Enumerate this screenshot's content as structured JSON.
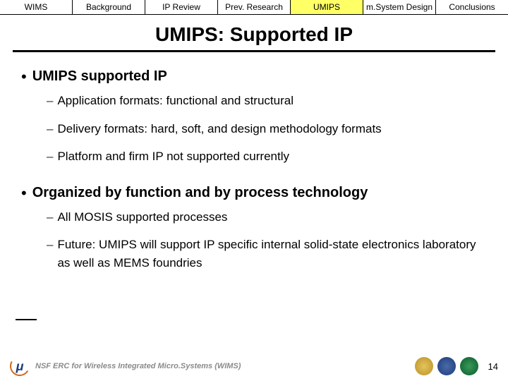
{
  "nav": {
    "tabs": [
      {
        "label": "WIMS",
        "active": false
      },
      {
        "label": "Background",
        "active": false
      },
      {
        "label": "IP Review",
        "active": false
      },
      {
        "label": "Prev. Research",
        "active": false
      },
      {
        "label": "UMIPS",
        "active": true
      },
      {
        "label": "m.System Design",
        "active": false
      },
      {
        "label": "Conclusions",
        "active": false
      }
    ]
  },
  "title": "UMIPS: Supported IP",
  "bullets": [
    {
      "text": "UMIPS supported IP",
      "sub": [
        "Application formats: functional and structural",
        "Delivery formats: hard, soft, and design methodology formats",
        "Platform and firm IP not supported currently"
      ]
    },
    {
      "text": "Organized by function and by process technology",
      "sub": [
        "All MOSIS supported processes",
        "Future: UMIPS will support IP specific internal solid-state electronics laboratory as well as MEMS foundries"
      ]
    }
  ],
  "footer": {
    "text": "NSF ERC for Wireless Integrated Micro.Systems (WIMS)",
    "page": "14"
  },
  "colors": {
    "highlight": "#ffff66",
    "text": "#000000",
    "footer_text": "#8a8a8a"
  }
}
